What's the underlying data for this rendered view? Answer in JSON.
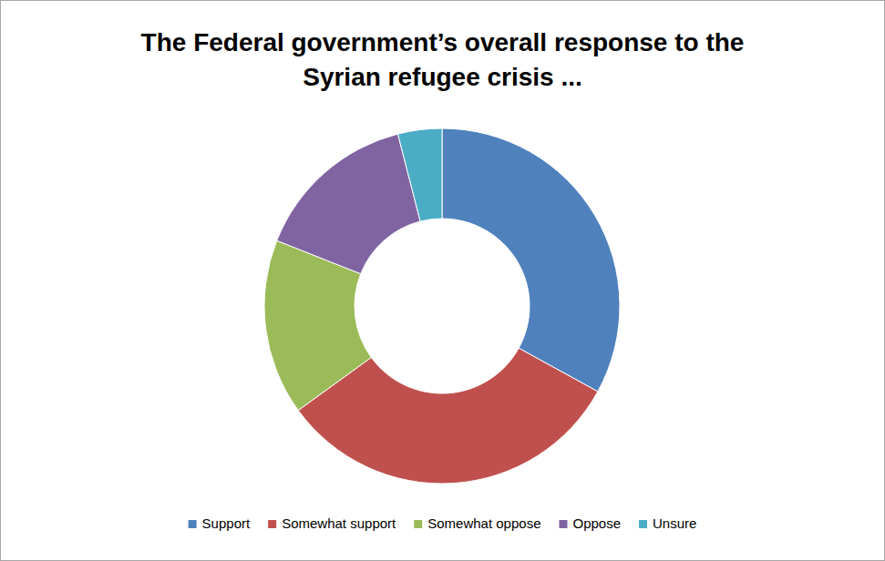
{
  "chart_data": {
    "type": "pie",
    "title": "The Federal government’s overall response to the Syrian refugee crisis ...",
    "categories": [
      "Support",
      "Somewhat support",
      "Somewhat oppose",
      "Oppose",
      "Unsure"
    ],
    "values": [
      33,
      32,
      16,
      15,
      4
    ],
    "colors": [
      "#4f81bd",
      "#c0504d",
      "#9bbb59",
      "#8064a2",
      "#4bacc6"
    ],
    "legend": "bottom",
    "data_labels": false
  }
}
